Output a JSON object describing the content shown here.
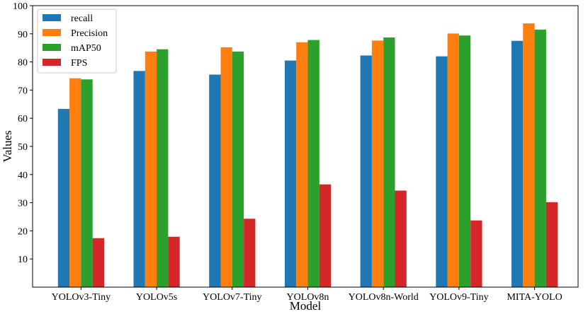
{
  "chart_data": {
    "type": "bar",
    "xlabel": "Model",
    "ylabel": "Values",
    "ylim": [
      0,
      100
    ],
    "yticks": [
      10,
      20,
      30,
      40,
      50,
      60,
      70,
      80,
      90,
      100
    ],
    "categories": [
      "YOLOv3-Tiny",
      "YOLOv5s",
      "YOLOv7-Tiny",
      "YOLOv8n",
      "YOLOv8n-World",
      "YOLOv9-Tiny",
      "MITA-YOLO"
    ],
    "series": [
      {
        "name": "recall",
        "color": "#1f77b4",
        "values": [
          63.3,
          76.8,
          75.5,
          80.5,
          82.3,
          82.0,
          87.5
        ]
      },
      {
        "name": "Precision",
        "color": "#ff7f0e",
        "values": [
          74.2,
          83.7,
          85.2,
          87.0,
          87.6,
          90.1,
          93.7
        ]
      },
      {
        "name": "mAP50",
        "color": "#2ca02c",
        "values": [
          73.8,
          84.5,
          83.7,
          87.8,
          88.7,
          89.4,
          91.5
        ]
      },
      {
        "name": "FPS",
        "color": "#d62728",
        "values": [
          17.4,
          17.9,
          24.3,
          36.5,
          34.3,
          23.7,
          30.2
        ]
      }
    ],
    "legend_position": "top-left",
    "grid": false
  }
}
